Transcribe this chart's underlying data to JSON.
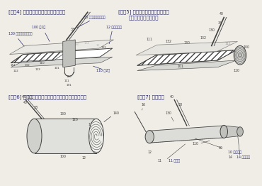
{
  "bg_color": "#f0ede6",
  "text_color": "#2a2a6a",
  "line_color": "#404040",
  "title_fig4": "[図面4] カバー物質を有する吸収複合体",
  "title_fig5": "[図面5] ソフトワインド形成方法で\n吸収複合体を形成する",
  "title_fig6": "[図面6] タンポン製造に利用されるソフトワインド状態",
  "title_fig7": "[図面7] タンポン",
  "fontsize_title": 5.0,
  "fontsize_label": 3.8,
  "fontsize_small": 3.4
}
